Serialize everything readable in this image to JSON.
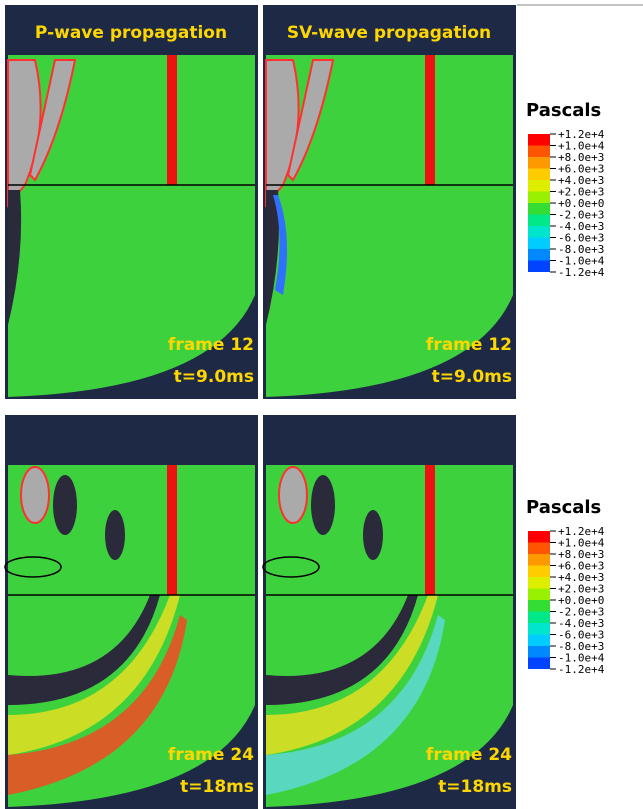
{
  "panels": [
    {
      "title": "P-wave propagation",
      "frame": "frame 12",
      "time": "t=9.0ms"
    },
    {
      "title": "SV-wave propagation",
      "frame": "frame 12",
      "time": "t=9.0ms"
    },
    {
      "frame": "frame 24",
      "time": "t=18ms"
    },
    {
      "frame": "frame 24",
      "time": "t=18ms"
    }
  ],
  "legends": [
    {
      "title": "Pascals",
      "labels": [
        "+1.2e+4",
        "+1.0e+4",
        "+8.0e+3",
        "+6.0e+3",
        "+4.0e+3",
        "+2.0e+3",
        "+0.0e+0",
        "-2.0e+3",
        "-4.0e+3",
        "-6.0e+3",
        "-8.0e+3",
        "-1.0e+4",
        "-1.2e+4"
      ]
    },
    {
      "title": "Pascals",
      "labels": [
        "+1.2e+4",
        "+1.0e+4",
        "+8.0e+3",
        "+6.0e+3",
        "+4.0e+3",
        "+2.0e+3",
        "+0.0e+0",
        "-2.0e+3",
        "-4.0e+3",
        "-6.0e+3",
        "-8.0e+3",
        "-1.0e+4",
        "-1.2e+4"
      ]
    }
  ]
}
